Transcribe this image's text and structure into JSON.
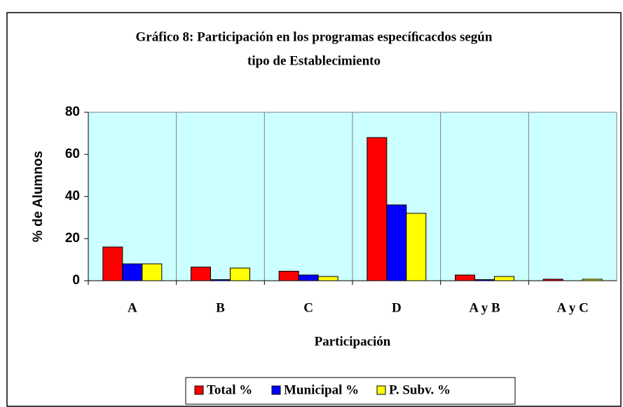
{
  "chart_data": {
    "type": "bar",
    "title": [
      "Gráfico 8: Participación en los programas especíﬁcacdos según",
      "tipo de Establecimiento"
    ],
    "x_label": "Participación",
    "y_label": "% de Alumnos",
    "categories": [
      "A",
      "B",
      "C",
      "D",
      "A y B",
      "A y C"
    ],
    "series": [
      {
        "name": "Total %",
        "color": "#ff0000",
        "values": [
          16,
          6.5,
          4.5,
          68,
          2.7,
          0.7
        ]
      },
      {
        "name": "Municipal %",
        "color": "#0000ff",
        "values": [
          8,
          0.5,
          2.7,
          36,
          0.5,
          0
        ]
      },
      {
        "name": "P. Subv. %",
        "color": "#ffff00",
        "values": [
          8,
          6,
          2,
          32,
          2,
          0.7
        ]
      }
    ],
    "ylim": [
      0,
      80
    ],
    "yticks": [
      0,
      20,
      40,
      60,
      80
    ],
    "grid": false,
    "plot_background": "#ccffff",
    "legend": "bottom"
  }
}
